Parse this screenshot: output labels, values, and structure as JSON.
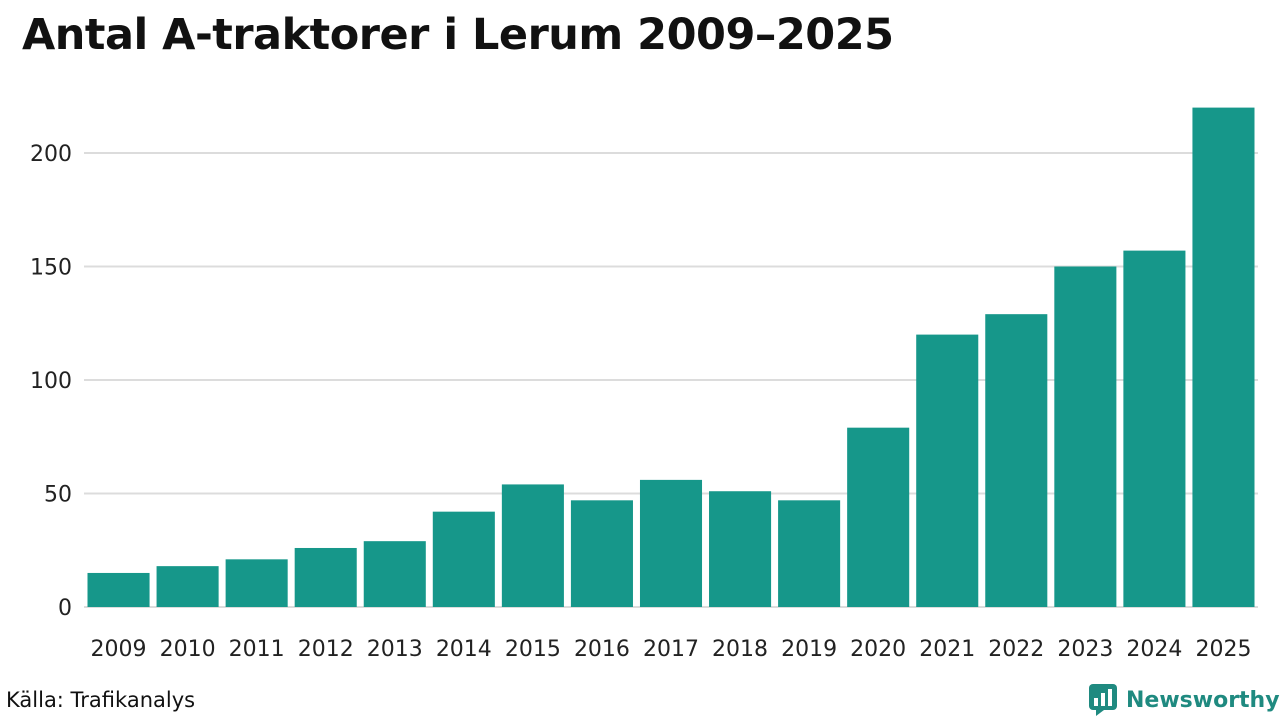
{
  "chart_data": {
    "type": "bar",
    "title": "Antal A-traktorer i Lerum 2009–2025",
    "categories": [
      "2009",
      "2010",
      "2011",
      "2012",
      "2013",
      "2014",
      "2015",
      "2016",
      "2017",
      "2018",
      "2019",
      "2020",
      "2021",
      "2022",
      "2023",
      "2024",
      "2025"
    ],
    "values": [
      15,
      18,
      21,
      26,
      29,
      42,
      54,
      47,
      56,
      51,
      47,
      79,
      120,
      129,
      150,
      157,
      220
    ],
    "yticks": [
      "0",
      "50",
      "100",
      "150",
      "200"
    ],
    "ylim": [
      0,
      225
    ],
    "xlabel": "",
    "ylabel": "",
    "grid": true,
    "legend": "none"
  },
  "colors": {
    "bar": "#16978a",
    "grid": "#dcdcdc",
    "brand": "#1f8a80"
  },
  "source": "Källa: Trafikanalys",
  "brand": {
    "name": "Newsworthy",
    "icon": "bar-chart-speech-bubble-icon"
  }
}
